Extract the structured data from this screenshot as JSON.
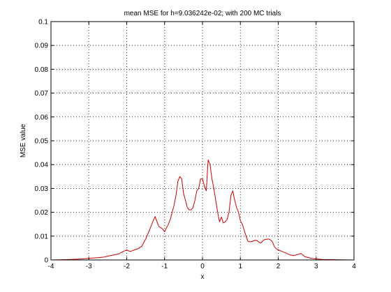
{
  "chart_data": {
    "type": "line",
    "title": "mean MSE for h=9.036242e-02; with 200 MC trials",
    "xlabel": "x",
    "ylabel": "MSE value",
    "xlim": [
      -4,
      4
    ],
    "ylim": [
      0,
      0.1
    ],
    "xticks": [
      -4,
      -3,
      -2,
      -1,
      0,
      1,
      2,
      3,
      4
    ],
    "xtick_labels": [
      "-4",
      "-3",
      "-2",
      "-1",
      "0",
      "1",
      "2",
      "3",
      "4"
    ],
    "yticks": [
      0,
      0.01,
      0.02,
      0.03,
      0.04,
      0.05,
      0.06,
      0.07,
      0.08,
      0.09,
      0.1
    ],
    "ytick_labels": [
      "0",
      "0.01",
      "0.02",
      "0.03",
      "0.04",
      "0.05",
      "0.06",
      "0.07",
      "0.08",
      "0.09",
      "0.1"
    ],
    "grid": true,
    "series": [
      {
        "color": "#cc0000",
        "x": [
          -4.0,
          -3.5,
          -3.2,
          -3.0,
          -2.8,
          -2.6,
          -2.5,
          -2.4,
          -2.3,
          -2.2,
          -2.1,
          -2.0,
          -1.95,
          -1.9,
          -1.85,
          -1.8,
          -1.7,
          -1.6,
          -1.5,
          -1.4,
          -1.3,
          -1.25,
          -1.2,
          -1.15,
          -1.1,
          -1.05,
          -1.0,
          -0.95,
          -0.9,
          -0.85,
          -0.8,
          -0.75,
          -0.7,
          -0.65,
          -0.6,
          -0.55,
          -0.5,
          -0.45,
          -0.4,
          -0.35,
          -0.3,
          -0.25,
          -0.2,
          -0.15,
          -0.1,
          -0.05,
          0.0,
          0.05,
          0.1,
          0.15,
          0.2,
          0.25,
          0.3,
          0.35,
          0.4,
          0.45,
          0.5,
          0.55,
          0.6,
          0.65,
          0.7,
          0.75,
          0.8,
          0.85,
          0.9,
          0.95,
          1.0,
          1.05,
          1.1,
          1.15,
          1.2,
          1.25,
          1.3,
          1.35,
          1.4,
          1.45,
          1.5,
          1.55,
          1.6,
          1.65,
          1.7,
          1.75,
          1.8,
          1.85,
          1.9,
          1.95,
          2.0,
          2.1,
          2.2,
          2.3,
          2.4,
          2.5,
          2.6,
          2.7,
          2.8,
          2.9,
          3.0,
          3.2,
          3.5,
          4.0
        ],
        "y": [
          0.0,
          0.0002,
          0.0004,
          0.0007,
          0.0009,
          0.0012,
          0.0016,
          0.0019,
          0.0022,
          0.0026,
          0.0035,
          0.0042,
          0.0038,
          0.0036,
          0.0039,
          0.0042,
          0.0047,
          0.0058,
          0.0088,
          0.0125,
          0.0165,
          0.0182,
          0.016,
          0.014,
          0.0135,
          0.013,
          0.0118,
          0.0135,
          0.015,
          0.017,
          0.02,
          0.023,
          0.027,
          0.033,
          0.035,
          0.034,
          0.028,
          0.025,
          0.022,
          0.021,
          0.021,
          0.022,
          0.025,
          0.029,
          0.03,
          0.034,
          0.034,
          0.031,
          0.029,
          0.042,
          0.04,
          0.034,
          0.03,
          0.025,
          0.02,
          0.016,
          0.018,
          0.0155,
          0.016,
          0.017,
          0.02,
          0.027,
          0.029,
          0.025,
          0.022,
          0.02,
          0.0165,
          0.015,
          0.0125,
          0.01,
          0.0078,
          0.0076,
          0.0077,
          0.008,
          0.0083,
          0.008,
          0.0073,
          0.0072,
          0.0082,
          0.0086,
          0.0087,
          0.0088,
          0.0084,
          0.0075,
          0.0055,
          0.0047,
          0.0042,
          0.0036,
          0.0029,
          0.0022,
          0.0018,
          0.0022,
          0.0027,
          0.0014,
          0.001,
          0.0006,
          0.0004,
          0.0002,
          0.0001,
          0.0
        ]
      }
    ]
  }
}
